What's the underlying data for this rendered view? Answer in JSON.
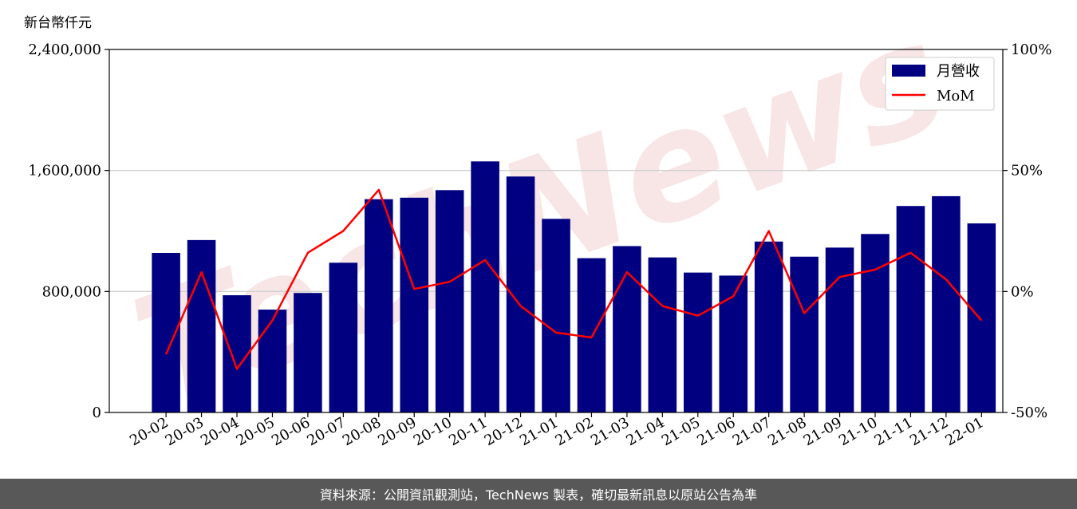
{
  "chart_data": {
    "type": "bar",
    "unit_label": "新台幣仟元",
    "watermark": "TechNews",
    "categories": [
      "20-02",
      "20-03",
      "20-04",
      "20-05",
      "20-06",
      "20-07",
      "20-08",
      "20-09",
      "20-10",
      "20-11",
      "20-12",
      "21-01",
      "21-02",
      "21-03",
      "21-04",
      "21-05",
      "21-06",
      "21-07",
      "21-08",
      "21-09",
      "21-10",
      "21-11",
      "21-12",
      "22-01"
    ],
    "series": [
      {
        "name": "月營收",
        "type": "bar",
        "axis": "left",
        "color": "#000080",
        "values": [
          1055000,
          1140000,
          775000,
          680000,
          790000,
          990000,
          1410000,
          1420000,
          1470000,
          1660000,
          1560000,
          1280000,
          1020000,
          1100000,
          1025000,
          925000,
          905000,
          1130000,
          1030000,
          1090000,
          1180000,
          1365000,
          1430000,
          1250000
        ]
      },
      {
        "name": "MoM",
        "type": "line",
        "axis": "right",
        "color": "#ff0000",
        "values": [
          -26,
          8,
          -32,
          -12,
          16,
          25,
          42,
          1,
          4,
          13,
          -6,
          -17,
          -19,
          8,
          -6,
          -10,
          -2,
          25,
          -9,
          6,
          9,
          16,
          5,
          -12
        ]
      }
    ],
    "ylim_left": [
      0,
      2400000
    ],
    "ylim_right": [
      -50,
      100
    ],
    "yticks_left": [
      "0",
      "800,000",
      "1,600,000",
      "2,400,000"
    ],
    "yticks_right": [
      "-50%",
      "0%",
      "50%",
      "100%"
    ],
    "grid": true,
    "legend_position": "top-right"
  },
  "footer": {
    "text": "資料來源：公開資訊觀測站，TechNews 製表，確切最新訊息以原站公告為準"
  }
}
